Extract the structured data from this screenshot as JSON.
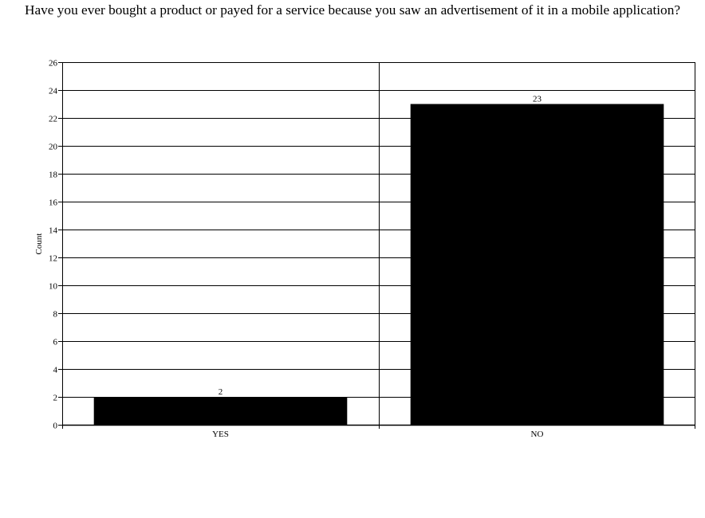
{
  "chart_data": {
    "type": "bar",
    "title": "Have you ever bought a product or payed for a service because you saw an advertisement of it in a mobile application?",
    "xlabel": "",
    "ylabel": "Count",
    "categories": [
      "YES",
      "NO"
    ],
    "values": [
      2,
      23
    ],
    "data_labels": [
      "2",
      "23"
    ],
    "ylim": [
      0,
      26
    ],
    "yticks": [
      0,
      2,
      4,
      6,
      8,
      10,
      12,
      14,
      16,
      18,
      20,
      22,
      24,
      26
    ],
    "grid": true,
    "legend": "none",
    "colors": {
      "bar": "#000000",
      "grid": "#000000",
      "background": "#ffffff"
    }
  }
}
